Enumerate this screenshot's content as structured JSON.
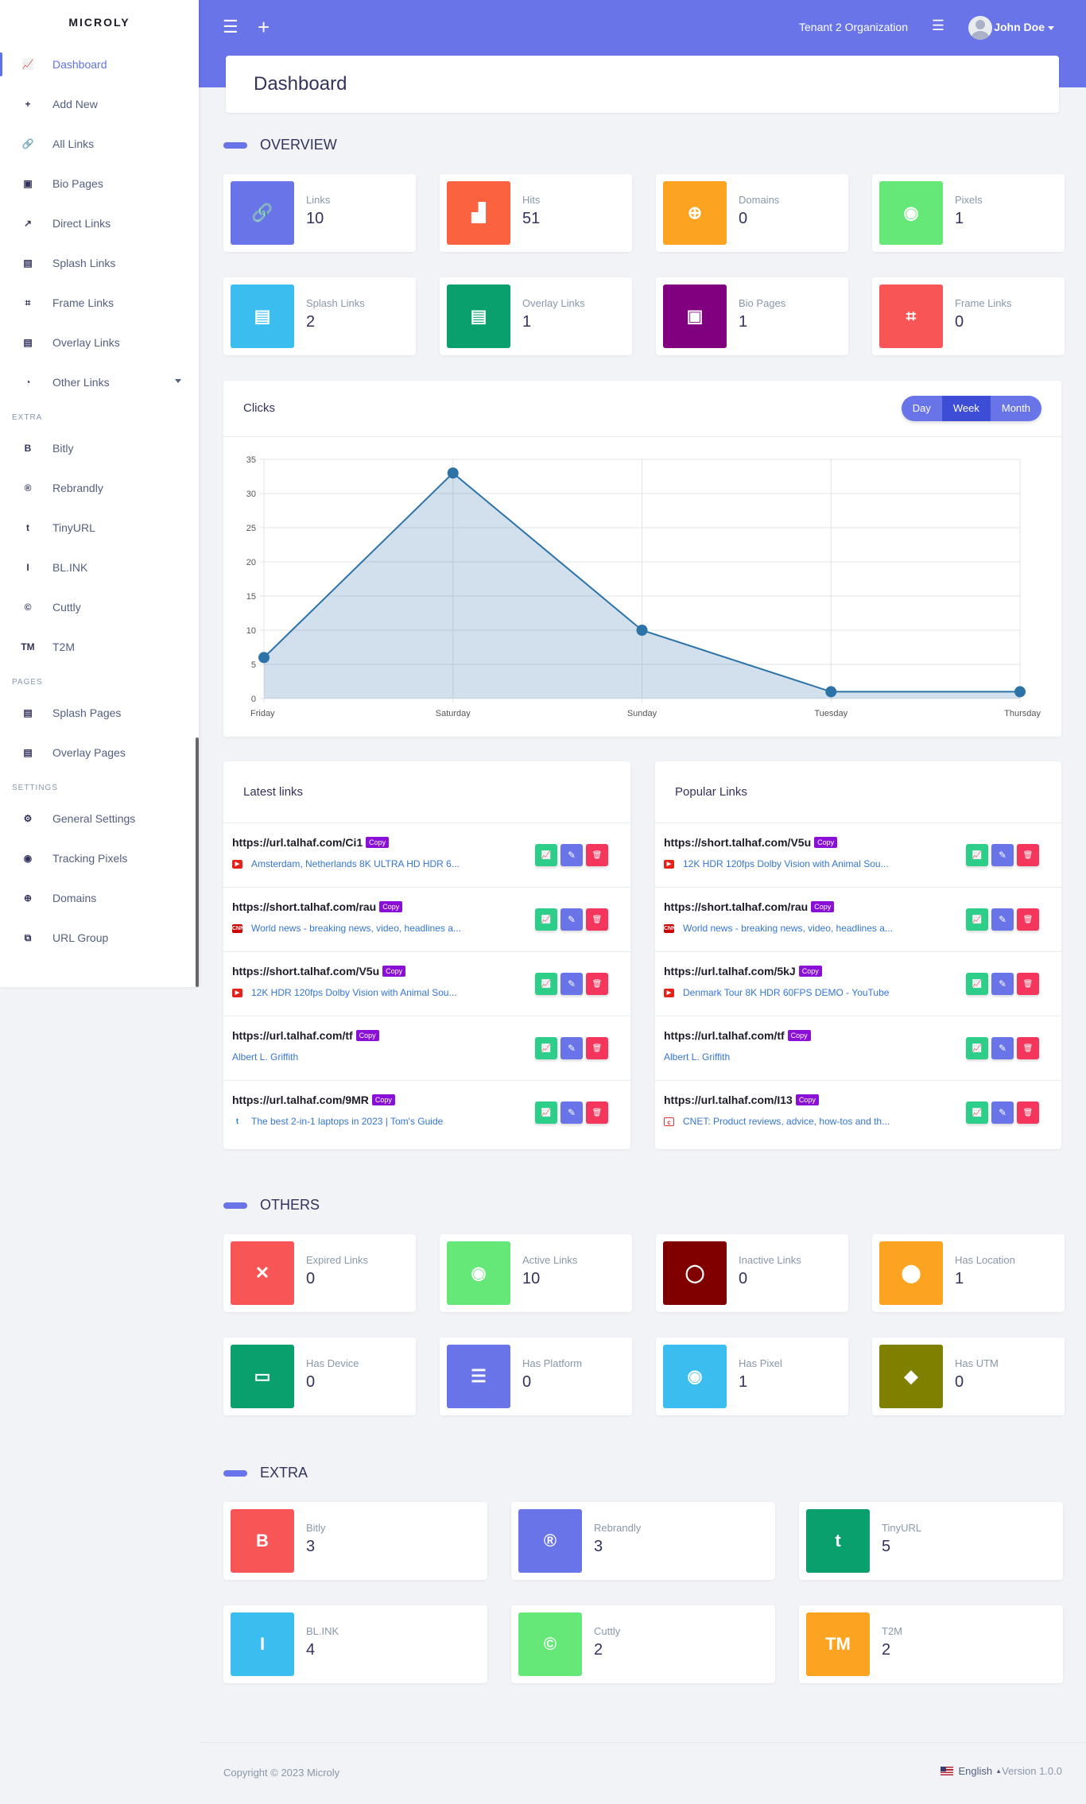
{
  "app": {
    "brand": "MICROLY"
  },
  "sidebar": {
    "main": [
      {
        "label": "Dashboard",
        "icon": "chart-line-icon",
        "glyph": "📈"
      },
      {
        "label": "Add New",
        "icon": "plus-icon",
        "glyph": "+"
      },
      {
        "label": "All Links",
        "icon": "link-icon",
        "glyph": "🔗"
      },
      {
        "label": "Bio Pages",
        "icon": "id-badge-icon",
        "glyph": "▣"
      },
      {
        "label": "Direct Links",
        "icon": "external-link-icon",
        "glyph": "↗"
      },
      {
        "label": "Splash Links",
        "icon": "window-icon",
        "glyph": "▤"
      },
      {
        "label": "Frame Links",
        "icon": "frame-icon",
        "glyph": "⌗"
      },
      {
        "label": "Overlay Links",
        "icon": "newspaper-icon",
        "glyph": "▤"
      },
      {
        "label": "Other Links",
        "icon": "pie-chart-icon",
        "glyph": "◔"
      }
    ],
    "extra_heading": "EXTRA",
    "extra": [
      {
        "label": "Bitly",
        "icon": "bitly-icon",
        "glyph": "B"
      },
      {
        "label": "Rebrandly",
        "icon": "rebrandly-icon",
        "glyph": "®"
      },
      {
        "label": "TinyURL",
        "icon": "tinyurl-icon",
        "glyph": "t"
      },
      {
        "label": "BL.INK",
        "icon": "blink-icon",
        "glyph": "I"
      },
      {
        "label": "Cuttly",
        "icon": "cuttly-icon",
        "glyph": "©"
      },
      {
        "label": "T2M",
        "icon": "t2m-icon",
        "glyph": "TM"
      }
    ],
    "pages_heading": "PAGES",
    "pages": [
      {
        "label": "Splash Pages",
        "icon": "window-icon",
        "glyph": "▤"
      },
      {
        "label": "Overlay Pages",
        "icon": "newspaper-icon",
        "glyph": "▤"
      }
    ],
    "settings_heading": "SETTINGS",
    "settings": [
      {
        "label": "General Settings",
        "icon": "gear-icon",
        "glyph": "⚙"
      },
      {
        "label": "Tracking Pixels",
        "icon": "target-icon",
        "glyph": "◉"
      },
      {
        "label": "Domains",
        "icon": "globe-icon",
        "glyph": "⊕"
      },
      {
        "label": "URL Group",
        "icon": "group-icon",
        "glyph": "⧉"
      }
    ]
  },
  "topbar": {
    "organization": "Tenant 2 Organization",
    "user": "John Doe"
  },
  "page_title": "Dashboard",
  "overview": {
    "heading": "OVERVIEW",
    "stats": [
      {
        "label": "Links",
        "value": "10",
        "color": "#6874e8",
        "icon": "link-icon",
        "glyph": "🔗"
      },
      {
        "label": "Hits",
        "value": "51",
        "color": "#fb6340",
        "icon": "bar-chart-icon",
        "glyph": "▟"
      },
      {
        "label": "Domains",
        "value": "0",
        "color": "#fca421",
        "icon": "globe-icon",
        "glyph": "⊕"
      },
      {
        "label": "Pixels",
        "value": "1",
        "color": "#66e879",
        "icon": "target-icon",
        "glyph": "◉"
      },
      {
        "label": "Splash Links",
        "value": "2",
        "color": "#3bbdf0",
        "icon": "window-icon",
        "glyph": "▤"
      },
      {
        "label": "Overlay Links",
        "value": "1",
        "color": "#0aa06e",
        "icon": "newspaper-icon",
        "glyph": "▤"
      },
      {
        "label": "Bio Pages",
        "value": "1",
        "color": "#800080",
        "icon": "id-badge-icon",
        "glyph": "▣"
      },
      {
        "label": "Frame Links",
        "value": "0",
        "color": "#f85656",
        "icon": "frame-icon",
        "glyph": "⌗"
      }
    ]
  },
  "clicks": {
    "title": "Clicks",
    "ranges": [
      "Day",
      "Week",
      "Month"
    ],
    "active_range": "Week"
  },
  "chart_data": {
    "type": "area",
    "categories": [
      "Friday",
      "Saturday",
      "Sunday",
      "Tuesday",
      "Thursday"
    ],
    "values": [
      6,
      33,
      10,
      1,
      1
    ],
    "ylim": [
      0,
      35
    ],
    "yticks": [
      0,
      5,
      10,
      15,
      20,
      25,
      30,
      35
    ],
    "grid": true,
    "color": "#2c73a8"
  },
  "latest": {
    "title": "Latest links",
    "rows": [
      {
        "url": "https://url.talhaf.com/Ci1",
        "title": "Amsterdam, Netherlands 8K ULTRA HD HDR 6...",
        "fav": "youtube"
      },
      {
        "url": "https://short.talhaf.com/rau",
        "title": "World news - breaking news, video, headlines a...",
        "fav": "cnn"
      },
      {
        "url": "https://short.talhaf.com/V5u",
        "title": "12K HDR 120fps Dolby Vision with Animal Sou...",
        "fav": "youtube"
      },
      {
        "url": "https://url.talhaf.com/tf",
        "title": "Albert L. Griffith",
        "fav": ""
      },
      {
        "url": "https://url.talhaf.com/9MR",
        "title": "The best 2-in-1 laptops in 2023 | Tom's Guide",
        "fav": "tomsguide"
      }
    ]
  },
  "popular": {
    "title": "Popular Links",
    "rows": [
      {
        "url": "https://short.talhaf.com/V5u",
        "title": "12K HDR 120fps Dolby Vision with Animal Sou...",
        "fav": "youtube"
      },
      {
        "url": "https://short.talhaf.com/rau",
        "title": "World news - breaking news, video, headlines a...",
        "fav": "cnn"
      },
      {
        "url": "https://url.talhaf.com/5kJ",
        "title": "Denmark Tour 8K HDR 60FPS DEMO - YouTube",
        "fav": "youtube"
      },
      {
        "url": "https://url.talhaf.com/tf",
        "title": "Albert L. Griffith",
        "fav": ""
      },
      {
        "url": "https://url.talhaf.com/I13",
        "title": "CNET: Product reviews, advice, how-tos and th...",
        "fav": "cnet"
      }
    ]
  },
  "copy_label": "Copy",
  "others": {
    "heading": "OTHERS",
    "stats": [
      {
        "label": "Expired Links",
        "value": "0",
        "color": "#f85656",
        "icon": "calendar-x-icon",
        "glyph": "✕"
      },
      {
        "label": "Active Links",
        "value": "10",
        "color": "#66e879",
        "icon": "toggle-on-icon",
        "glyph": "◉"
      },
      {
        "label": "Inactive Links",
        "value": "0",
        "color": "#800000",
        "icon": "toggle-off-icon",
        "glyph": "◯"
      },
      {
        "label": "Has Location",
        "value": "1",
        "color": "#fca421",
        "icon": "location-pin-icon",
        "glyph": "⬤"
      },
      {
        "label": "Has Device",
        "value": "0",
        "color": "#0aa06e",
        "icon": "desktop-icon",
        "glyph": "▭"
      },
      {
        "label": "Has Platform",
        "value": "0",
        "color": "#6874e8",
        "icon": "server-icon",
        "glyph": "☰"
      },
      {
        "label": "Has Pixel",
        "value": "1",
        "color": "#3bbdf0",
        "icon": "target-icon",
        "glyph": "◉"
      },
      {
        "label": "Has UTM",
        "value": "0",
        "color": "#808000",
        "icon": "tags-icon",
        "glyph": "◆"
      }
    ]
  },
  "extra": {
    "heading": "EXTRA",
    "stats": [
      {
        "label": "Bitly",
        "value": "3",
        "color": "#f85656",
        "icon": "bitly-icon",
        "glyph": "B"
      },
      {
        "label": "Rebrandly",
        "value": "3",
        "color": "#6874e8",
        "icon": "rebrandly-icon",
        "glyph": "®"
      },
      {
        "label": "TinyURL",
        "value": "5",
        "color": "#0aa06e",
        "icon": "tinyurl-icon",
        "glyph": "t"
      },
      {
        "label": "BL.INK",
        "value": "4",
        "color": "#3bbdf0",
        "icon": "blink-icon",
        "glyph": "I"
      },
      {
        "label": "Cuttly",
        "value": "2",
        "color": "#66e879",
        "icon": "cuttly-icon",
        "glyph": "©"
      },
      {
        "label": "T2M",
        "value": "2",
        "color": "#fca421",
        "icon": "t2m-icon",
        "glyph": "TM"
      }
    ]
  },
  "footer": {
    "copyright": "Copyright © 2023 Microly",
    "language": "English",
    "version": "Version 1.0.0"
  }
}
